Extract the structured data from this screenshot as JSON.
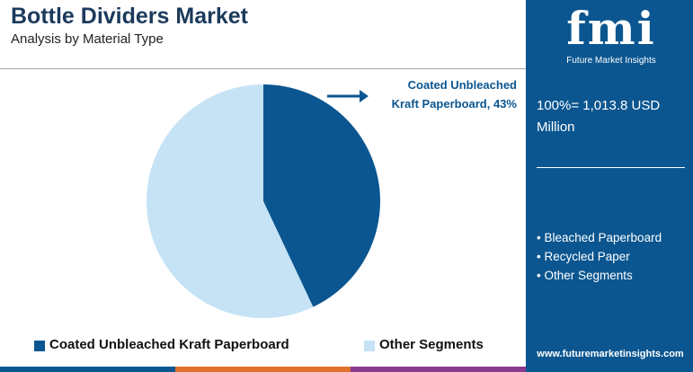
{
  "chart_data": {
    "type": "pie",
    "title": "Bottle Dividers Market",
    "subtitle": "Analysis by Material Type",
    "categories": [
      "Coated Unbleached Kraft Paperboard",
      "Other Segments"
    ],
    "values": [
      43,
      57
    ],
    "value_labels": [
      "Coated Unbleached Kraft Paperboard, 43%",
      null
    ],
    "colors": [
      "#0b5690",
      "#c5e3f5"
    ],
    "legend": "bottom"
  },
  "panel": {
    "logo": "fmi",
    "brand": "Future Market Insights",
    "total": "100%= 1,013.8 USD Million",
    "segments": [
      "Bleached Paperboard",
      "Recycled Paper",
      "Other Segments"
    ],
    "website": "www.futuremarketinsights.com"
  }
}
